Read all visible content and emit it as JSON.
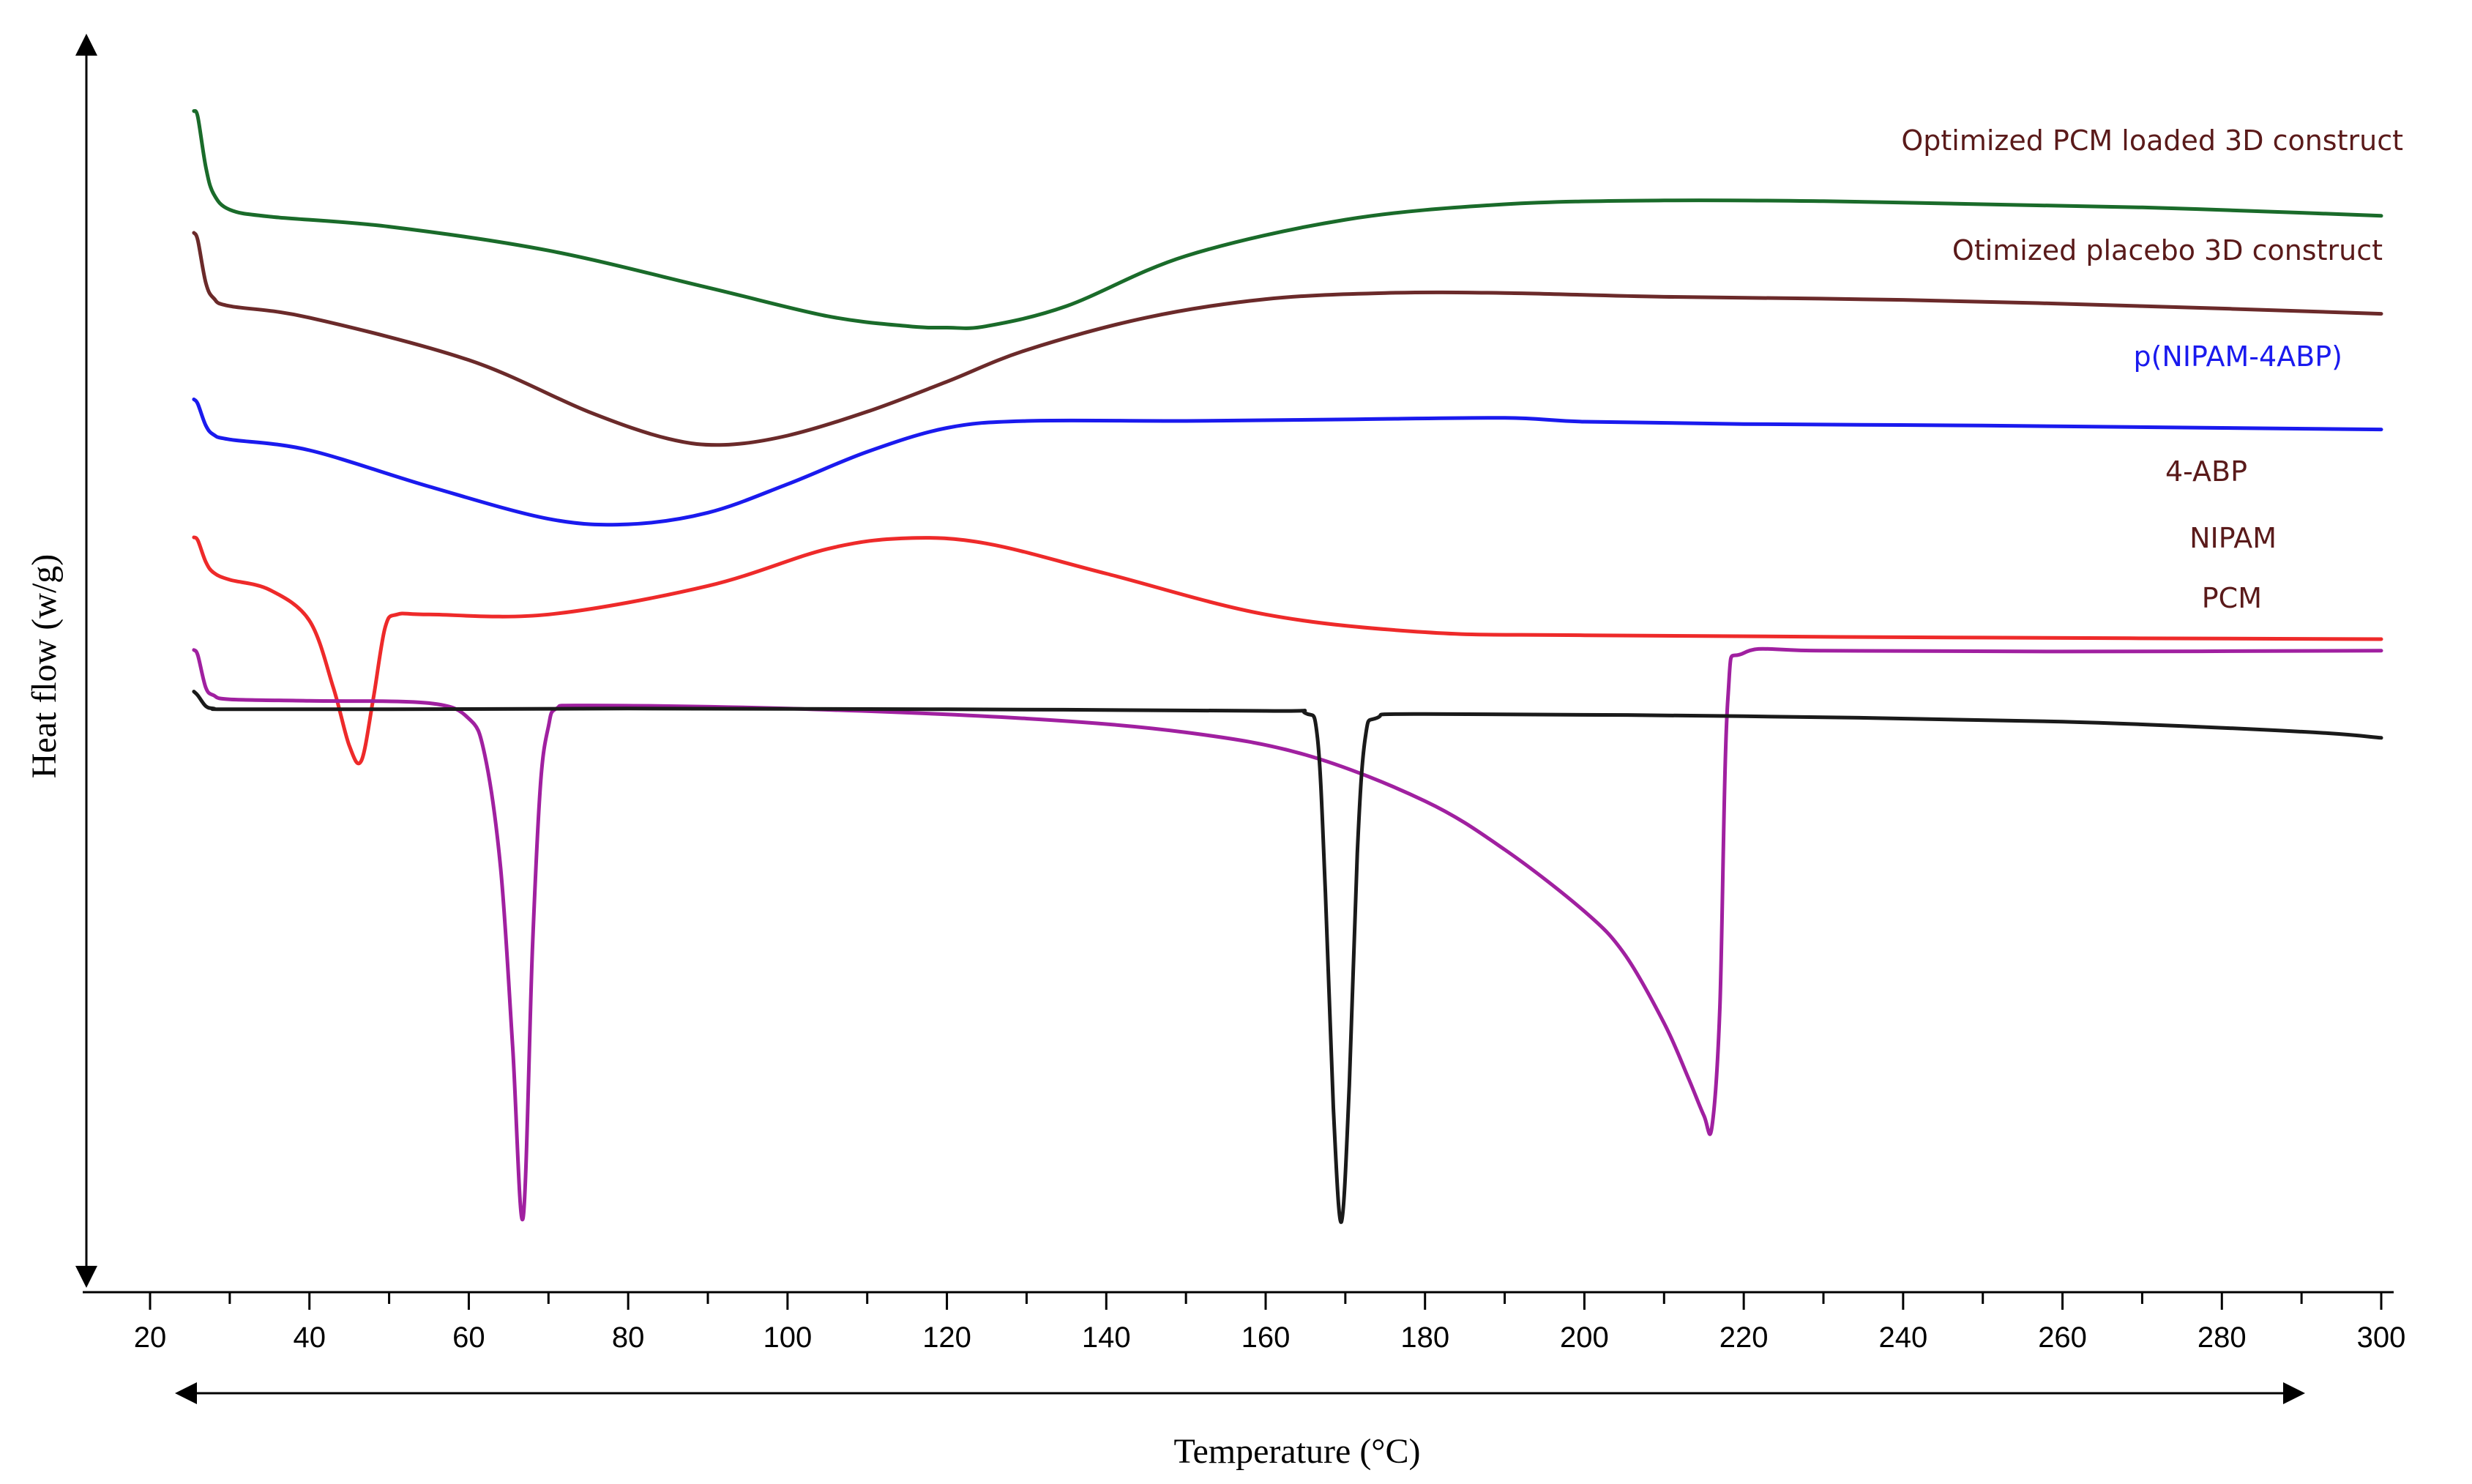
{
  "chart_data": {
    "type": "line",
    "title": "",
    "xlabel": "Temperature (°C)",
    "ylabel": "Heat flow (w/g)",
    "xlim": [
      20,
      300
    ],
    "ylim": [
      -8.5,
      7.5
    ],
    "grid": false,
    "legend": "inline labels at right end of each curve",
    "x_ticks": [
      20,
      40,
      60,
      80,
      100,
      120,
      140,
      160,
      180,
      200,
      220,
      240,
      260,
      280,
      300
    ],
    "x_tick_labels": [
      "20",
      "40",
      "60",
      "80",
      "100",
      "120",
      "140",
      "160",
      "180",
      "200",
      "220",
      "240",
      "260",
      "280",
      "300"
    ],
    "series": [
      {
        "name": "Optimized PCM loaded 3D construct",
        "color": "#1a6b2a",
        "label_color": "#5a1a1a",
        "x": [
          25.5,
          26,
          27,
          28,
          30,
          35,
          50,
          70,
          90,
          105,
          115,
          120,
          125,
          135,
          150,
          170,
          190,
          210,
          230,
          250,
          270,
          290,
          300
        ],
        "y": [
          6.63,
          6.55,
          5.9,
          5.55,
          5.35,
          5.26,
          5.13,
          4.82,
          4.34,
          3.97,
          3.84,
          3.82,
          3.84,
          4.1,
          4.75,
          5.22,
          5.42,
          5.47,
          5.46,
          5.42,
          5.38,
          5.31,
          5.27
        ]
      },
      {
        "name": "Otimized placebo 3D construct",
        "color": "#6b2a2a",
        "label_color": "#5a1a1a",
        "x": [
          25.5,
          26,
          27,
          28,
          30,
          40,
          60,
          75,
          85,
          92,
          100,
          110,
          120,
          130,
          145,
          160,
          175,
          190,
          210,
          240,
          270,
          300
        ],
        "y": [
          5.05,
          4.95,
          4.4,
          4.2,
          4.1,
          3.95,
          3.4,
          2.73,
          2.38,
          2.3,
          2.42,
          2.73,
          3.12,
          3.53,
          3.95,
          4.19,
          4.27,
          4.27,
          4.22,
          4.18,
          4.1,
          4.0
        ]
      },
      {
        "name": "p(NIPAM-4ABP)",
        "color": "#1a1aee",
        "label_color": "#1a1aee",
        "x": [
          25.5,
          26,
          27,
          28,
          30,
          40,
          55,
          70,
          80,
          90,
          100,
          110,
          120,
          130,
          150,
          170,
          190,
          200,
          220,
          250,
          280,
          300
        ],
        "y": [
          2.89,
          2.83,
          2.55,
          2.43,
          2.37,
          2.23,
          1.76,
          1.34,
          1.27,
          1.42,
          1.79,
          2.21,
          2.52,
          2.61,
          2.61,
          2.63,
          2.65,
          2.6,
          2.57,
          2.55,
          2.52,
          2.5
        ]
      },
      {
        "name": "4-ABP",
        "color": "#ee2a2a",
        "label_color": "#5a1a1a",
        "x": [
          25.5,
          26,
          27,
          28,
          30,
          35,
          40,
          43,
          45,
          46.5,
          48,
          49.5,
          51,
          55,
          70,
          90,
          105,
          115,
          125,
          140,
          160,
          180,
          200,
          250,
          300
        ],
        "y": [
          1.1,
          1.06,
          0.78,
          0.64,
          0.55,
          0.42,
          0.02,
          -0.85,
          -1.6,
          -1.8,
          -1.0,
          -0.07,
          0.1,
          0.1,
          0.1,
          0.47,
          0.95,
          1.09,
          1.02,
          0.63,
          0.1,
          -0.13,
          -0.17,
          -0.2,
          -0.22
        ]
      },
      {
        "name": "NIPAM",
        "color": "#a020a0",
        "label_color": "#5a1a1a",
        "x": [
          25.5,
          26,
          27,
          28,
          30,
          40,
          55,
          60,
          62,
          64,
          65.5,
          66.8,
          68,
          69,
          70,
          71,
          75,
          100,
          130,
          150,
          165,
          180,
          190,
          200,
          205,
          210,
          213,
          215,
          216,
          217,
          218,
          220,
          230,
          260,
          300
        ],
        "y": [
          -0.36,
          -0.43,
          -0.85,
          -0.95,
          -1.0,
          -1.02,
          -1.05,
          -1.25,
          -1.72,
          -3.2,
          -5.5,
          -7.73,
          -4.2,
          -2.1,
          -1.35,
          -1.12,
          -1.08,
          -1.12,
          -1.25,
          -1.43,
          -1.72,
          -2.32,
          -2.95,
          -3.75,
          -4.3,
          -5.2,
          -5.9,
          -6.4,
          -6.55,
          -5.0,
          -1.0,
          -0.4,
          -0.37,
          -0.38,
          -0.37
        ]
      },
      {
        "name": "PCM",
        "color": "#1a1a1a",
        "label_color": "#5a1a1a",
        "x": [
          25.5,
          26,
          27,
          28,
          30,
          50,
          80,
          120,
          160,
          165,
          166.5,
          167.5,
          168.5,
          169.5,
          170.5,
          171.5,
          172.5,
          174,
          180,
          220,
          260,
          290,
          300
        ],
        "y": [
          -0.9,
          -0.95,
          -1.09,
          -1.12,
          -1.13,
          -1.13,
          -1.12,
          -1.13,
          -1.15,
          -1.18,
          -1.5,
          -3.5,
          -6.3,
          -7.78,
          -6.0,
          -3.0,
          -1.5,
          -1.24,
          -1.19,
          -1.22,
          -1.29,
          -1.42,
          -1.5
        ]
      }
    ]
  }
}
